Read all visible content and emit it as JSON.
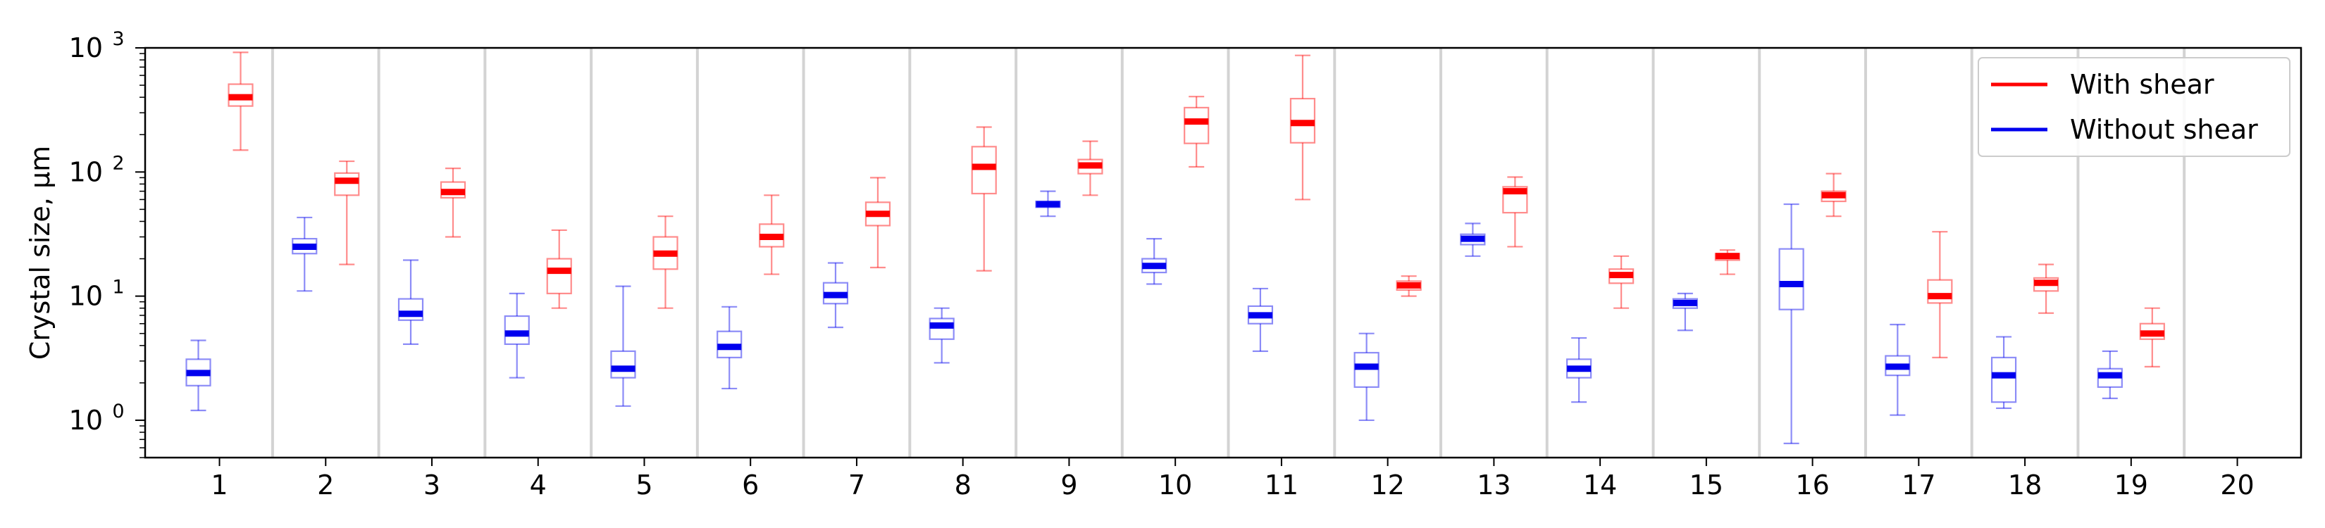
{
  "chart_data": {
    "type": "boxplot",
    "ylabel": "Crystal size, μm",
    "yscale": "log",
    "ylim": [
      0.5,
      1000
    ],
    "y_ticks": [
      {
        "value": 1,
        "base": "10",
        "exp": "0"
      },
      {
        "value": 10,
        "base": "10",
        "exp": "1"
      },
      {
        "value": 100,
        "base": "10",
        "exp": "2"
      },
      {
        "value": 1000,
        "base": "10",
        "exp": "3"
      }
    ],
    "xlim": [
      0.3,
      20.6
    ],
    "categories": [
      "1",
      "2",
      "3",
      "4",
      "5",
      "6",
      "7",
      "8",
      "9",
      "10",
      "11",
      "12",
      "13",
      "14",
      "15",
      "16",
      "17",
      "18",
      "19",
      "20"
    ],
    "separators": [
      1.5,
      2.5,
      3.5,
      4.5,
      5.5,
      6.5,
      7.5,
      8.5,
      9.5,
      10.5,
      11.5,
      12.5,
      13.5,
      14.5,
      15.5,
      16.5,
      17.5,
      18.5,
      19.5
    ],
    "legend": {
      "position": "top-right"
    },
    "series": [
      {
        "name": "With shear",
        "color": "#ff0000",
        "boxes": [
          {
            "x": 1,
            "whislo": 150,
            "q1": 340,
            "med": 400,
            "q3": 510,
            "whishi": 920
          },
          {
            "x": 2,
            "whislo": 18,
            "q1": 65,
            "med": 85,
            "q3": 98,
            "whishi": 122
          },
          {
            "x": 3,
            "whislo": 30,
            "q1": 62,
            "med": 69,
            "q3": 83,
            "whishi": 107
          },
          {
            "x": 4,
            "whislo": 8,
            "q1": 10.5,
            "med": 16,
            "q3": 20,
            "whishi": 34
          },
          {
            "x": 5,
            "whislo": 8,
            "q1": 16.5,
            "med": 22,
            "q3": 30,
            "whishi": 44
          },
          {
            "x": 6,
            "whislo": 15,
            "q1": 25,
            "med": 30,
            "q3": 38,
            "whishi": 65
          },
          {
            "x": 7,
            "whislo": 17,
            "q1": 37,
            "med": 46,
            "q3": 57,
            "whishi": 90
          },
          {
            "x": 8,
            "whislo": 16,
            "q1": 67,
            "med": 110,
            "q3": 160,
            "whishi": 230
          },
          {
            "x": 9,
            "whislo": 65,
            "q1": 97,
            "med": 113,
            "q3": 126,
            "whishi": 177
          },
          {
            "x": 10,
            "whislo": 110,
            "q1": 170,
            "med": 255,
            "q3": 330,
            "whishi": 405
          },
          {
            "x": 11,
            "whislo": 60,
            "q1": 172,
            "med": 248,
            "q3": 390,
            "whishi": 870
          },
          {
            "x": 12,
            "whislo": 10,
            "q1": 11.2,
            "med": 12.2,
            "q3": 13.2,
            "whishi": 14.5
          },
          {
            "x": 13,
            "whislo": 25,
            "q1": 47,
            "med": 70,
            "q3": 76,
            "whishi": 91
          },
          {
            "x": 14,
            "whislo": 8,
            "q1": 12.7,
            "med": 14.8,
            "q3": 16.5,
            "whishi": 21
          },
          {
            "x": 15,
            "whislo": 15,
            "q1": 19.5,
            "med": 21,
            "q3": 22,
            "whishi": 23.5
          },
          {
            "x": 16,
            "whislo": 44,
            "q1": 58,
            "med": 65,
            "q3": 70,
            "whishi": 97
          },
          {
            "x": 17,
            "whislo": 3.2,
            "q1": 8.8,
            "med": 10,
            "q3": 13.5,
            "whishi": 33
          },
          {
            "x": 18,
            "whislo": 7.3,
            "q1": 11,
            "med": 12.8,
            "q3": 14,
            "whishi": 18
          },
          {
            "x": 19,
            "whislo": 2.7,
            "q1": 4.5,
            "med": 5,
            "q3": 6,
            "whishi": 8
          }
        ]
      },
      {
        "name": "Without shear",
        "color": "#0000ee",
        "boxes": [
          {
            "x": 1,
            "whislo": 1.2,
            "q1": 1.9,
            "med": 2.4,
            "q3": 3.1,
            "whishi": 4.4
          },
          {
            "x": 2,
            "whislo": 11,
            "q1": 22,
            "med": 25,
            "q3": 29,
            "whishi": 43
          },
          {
            "x": 3,
            "whislo": 4.1,
            "q1": 6.4,
            "med": 7.2,
            "q3": 9.5,
            "whishi": 19.5
          },
          {
            "x": 4,
            "whislo": 2.2,
            "q1": 4.1,
            "med": 5,
            "q3": 6.9,
            "whishi": 10.5
          },
          {
            "x": 5,
            "whislo": 1.3,
            "q1": 2.2,
            "med": 2.6,
            "q3": 3.6,
            "whishi": 12
          },
          {
            "x": 6,
            "whislo": 1.8,
            "q1": 3.2,
            "med": 3.9,
            "q3": 5.2,
            "whishi": 8.2
          },
          {
            "x": 7,
            "whislo": 5.6,
            "q1": 8.7,
            "med": 10.2,
            "q3": 12.8,
            "whishi": 18.5
          },
          {
            "x": 8,
            "whislo": 2.9,
            "q1": 4.5,
            "med": 5.8,
            "q3": 6.6,
            "whishi": 8
          },
          {
            "x": 9,
            "whislo": 44,
            "q1": 52,
            "med": 55,
            "q3": 58,
            "whishi": 70
          },
          {
            "x": 10,
            "whislo": 12.5,
            "q1": 15.5,
            "med": 17.5,
            "q3": 20,
            "whishi": 29
          },
          {
            "x": 11,
            "whislo": 3.6,
            "q1": 6,
            "med": 7,
            "q3": 8.3,
            "whishi": 11.5
          },
          {
            "x": 12,
            "whislo": 1.0,
            "q1": 1.85,
            "med": 2.7,
            "q3": 3.5,
            "whishi": 5
          },
          {
            "x": 13,
            "whislo": 21,
            "q1": 26,
            "med": 29,
            "q3": 31.5,
            "whishi": 38.5
          },
          {
            "x": 14,
            "whislo": 1.4,
            "q1": 2.2,
            "med": 2.6,
            "q3": 3.1,
            "whishi": 4.6
          },
          {
            "x": 15,
            "whislo": 5.3,
            "q1": 8,
            "med": 8.8,
            "q3": 9.5,
            "whishi": 10.5
          },
          {
            "x": 16,
            "whislo": 0.65,
            "q1": 7.8,
            "med": 12.5,
            "q3": 24,
            "whishi": 55
          },
          {
            "x": 17,
            "whislo": 1.1,
            "q1": 2.3,
            "med": 2.7,
            "q3": 3.3,
            "whishi": 5.9
          },
          {
            "x": 18,
            "whislo": 1.25,
            "q1": 1.4,
            "med": 2.3,
            "q3": 3.2,
            "whishi": 4.7
          },
          {
            "x": 19,
            "whislo": 1.5,
            "q1": 1.85,
            "med": 2.3,
            "q3": 2.6,
            "whishi": 3.6
          }
        ]
      }
    ]
  }
}
